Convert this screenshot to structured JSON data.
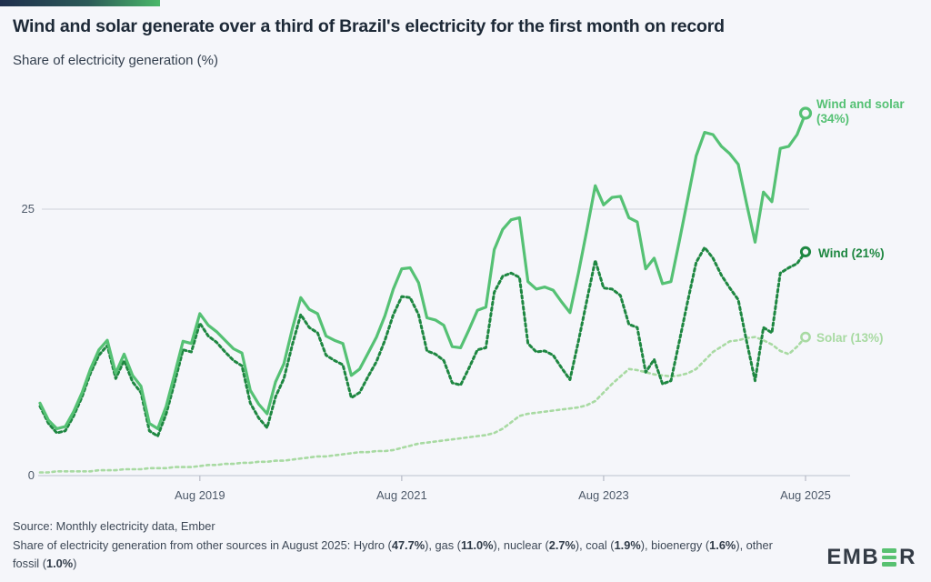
{
  "header": {
    "title": "Wind and solar generate over a third of Brazil's electricity for the first month on record",
    "subtitle": "Share of electricity generation (%)"
  },
  "chart_data": {
    "type": "line",
    "x_unit": "month",
    "x_range": [
      "Jan 2018",
      "Aug 2025"
    ],
    "x_tick_labels": [
      "Aug 2019",
      "Aug 2021",
      "Aug 2023",
      "Aug 2025"
    ],
    "x_tick_month_index": [
      19,
      43,
      67,
      91
    ],
    "y_ticks": [
      0,
      25
    ],
    "y_tick_labels": [
      "0",
      "25"
    ],
    "ylim": [
      0,
      36
    ],
    "grid": "horizontal line at 25 only",
    "legend_position": "end-of-line labels, right side",
    "series": [
      {
        "name": "Wind and solar",
        "style": "solid",
        "color": "#55c174",
        "end_label": {
          "line1": "Wind and solar",
          "line2": "(34%)"
        },
        "values": [
          6.8,
          5.2,
          4.4,
          4.6,
          6.0,
          7.8,
          10.0,
          11.8,
          12.7,
          9.6,
          11.4,
          9.4,
          8.4,
          4.9,
          4.4,
          6.5,
          9.5,
          12.6,
          12.4,
          15.2,
          14.1,
          13.5,
          12.7,
          11.9,
          11.5,
          8.0,
          6.7,
          5.8,
          8.8,
          10.5,
          13.8,
          16.7,
          15.6,
          15.2,
          13.1,
          12.7,
          12.4,
          9.4,
          10.0,
          11.5,
          13.0,
          15.0,
          17.5,
          19.4,
          19.5,
          18.1,
          14.8,
          14.6,
          14.1,
          12.1,
          12.0,
          13.7,
          15.5,
          15.8,
          21.2,
          23.1,
          24.0,
          24.2,
          18.2,
          17.5,
          17.7,
          17.4,
          16.3,
          15.3,
          19.0,
          23.0,
          27.2,
          25.4,
          26.1,
          26.2,
          24.2,
          23.8,
          19.4,
          20.4,
          18.0,
          18.2,
          22.0,
          26.0,
          30.0,
          32.2,
          32.0,
          30.9,
          30.2,
          29.2,
          25.5,
          21.9,
          26.6,
          25.7,
          30.7,
          30.9,
          32.0,
          34.0
        ]
      },
      {
        "name": "Wind",
        "style": "dashed",
        "color": "#1e8741",
        "end_label": {
          "line1": "Wind (21%)"
        },
        "values": [
          6.5,
          4.9,
          4.0,
          4.2,
          5.6,
          7.4,
          9.6,
          11.3,
          12.2,
          9.1,
          10.8,
          8.8,
          7.8,
          4.2,
          3.7,
          5.8,
          8.7,
          11.8,
          11.6,
          14.3,
          13.1,
          12.5,
          11.6,
          10.8,
          10.3,
          6.8,
          5.4,
          4.5,
          7.4,
          9.1,
          12.3,
          15.1,
          13.9,
          13.4,
          11.3,
          10.8,
          10.4,
          7.3,
          7.8,
          9.3,
          10.7,
          12.7,
          15.1,
          16.8,
          16.7,
          15.1,
          11.7,
          11.4,
          10.8,
          8.7,
          8.5,
          10.1,
          11.8,
          12.0,
          17.2,
          18.7,
          19.0,
          18.6,
          12.4,
          11.6,
          11.7,
          11.3,
          10.1,
          9.0,
          12.6,
          16.4,
          20.2,
          17.6,
          17.5,
          16.9,
          14.2,
          13.9,
          9.7,
          10.9,
          8.6,
          8.9,
          12.6,
          16.4,
          20.0,
          21.4,
          20.4,
          18.8,
          17.6,
          16.5,
          12.6,
          8.9,
          13.9,
          13.4,
          19.0,
          19.5,
          19.9,
          21.0
        ]
      },
      {
        "name": "Solar",
        "style": "dashed",
        "color": "#a8daa2",
        "end_label": {
          "line1": "Solar (13%)"
        },
        "values": [
          0.3,
          0.3,
          0.4,
          0.4,
          0.4,
          0.4,
          0.4,
          0.5,
          0.5,
          0.5,
          0.6,
          0.6,
          0.6,
          0.7,
          0.7,
          0.7,
          0.8,
          0.8,
          0.8,
          0.9,
          1.0,
          1.0,
          1.1,
          1.1,
          1.2,
          1.2,
          1.3,
          1.3,
          1.4,
          1.4,
          1.5,
          1.6,
          1.7,
          1.8,
          1.8,
          1.9,
          2.0,
          2.1,
          2.2,
          2.2,
          2.3,
          2.3,
          2.4,
          2.6,
          2.8,
          3.0,
          3.1,
          3.2,
          3.3,
          3.4,
          3.5,
          3.6,
          3.7,
          3.8,
          4.0,
          4.4,
          5.0,
          5.6,
          5.8,
          5.9,
          6.0,
          6.1,
          6.2,
          6.3,
          6.4,
          6.6,
          7.0,
          7.8,
          8.6,
          9.3,
          10.0,
          9.9,
          9.7,
          9.5,
          9.4,
          9.3,
          9.4,
          9.6,
          10.0,
          10.8,
          11.6,
          12.1,
          12.6,
          12.7,
          12.9,
          13.0,
          12.7,
          12.3,
          11.7,
          11.4,
          12.1,
          13.0
        ]
      }
    ]
  },
  "footer": {
    "source_line": "Source: Monthly electricity data, Ember",
    "note_segments": [
      {
        "t": "Share of electricity generation from other sources in August 2025: Hydro (",
        "b": false
      },
      {
        "t": "47.7%",
        "b": true
      },
      {
        "t": "), gas (",
        "b": false
      },
      {
        "t": "11.0%",
        "b": true
      },
      {
        "t": "), nuclear (",
        "b": false
      },
      {
        "t": "2.7%",
        "b": true
      },
      {
        "t": "), coal (",
        "b": false
      },
      {
        "t": "1.9%",
        "b": true
      },
      {
        "t": "), bioenergy (",
        "b": false
      },
      {
        "t": "1.6%",
        "b": true
      },
      {
        "t": "), other fossil (",
        "b": false
      },
      {
        "t": "1.0%",
        "b": true
      },
      {
        "t": ")",
        "b": false
      }
    ]
  },
  "logo": {
    "left_text": "EMB",
    "right_text": "R",
    "bar_color": "#58c171"
  },
  "colors": {
    "background": "#f5f6fa",
    "accent_gradient": [
      "#1f2f4d",
      "#4ab869"
    ],
    "gridline": "#d7d9e0",
    "axis_line": "#c8ccd6",
    "tick": "#b6bac6",
    "title_text": "#1d2937",
    "axis_text": "#4e5a6a",
    "footer_text": "#3d4856"
  }
}
